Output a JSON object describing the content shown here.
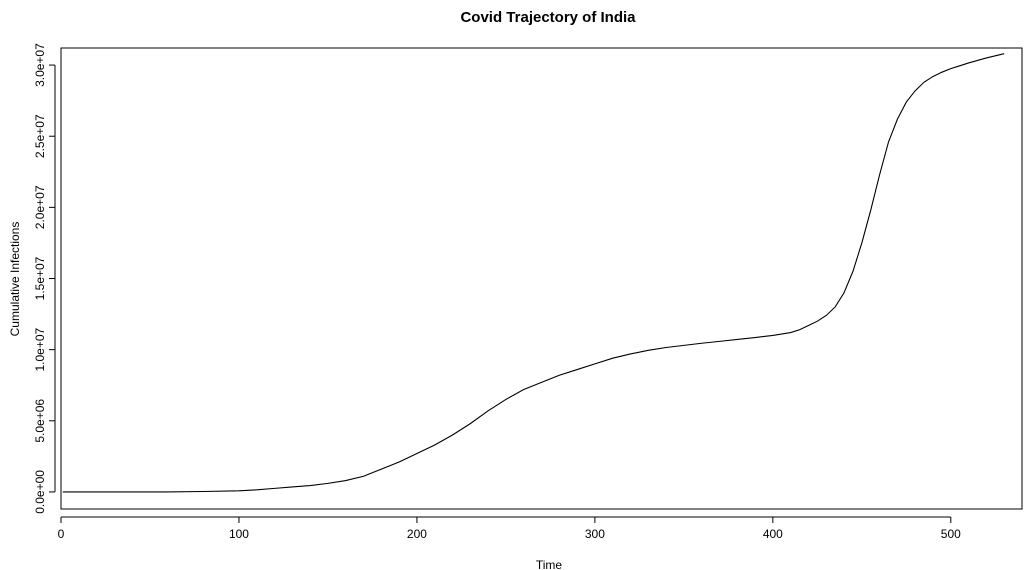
{
  "chart_data": {
    "type": "line",
    "title": "Covid Trajectory of India",
    "xlabel": "Time",
    "ylabel": "Cumulative Infections",
    "xlim": [
      0,
      540
    ],
    "ylim": [
      -1200000,
      31200000
    ],
    "x_ticks": [
      0,
      100,
      200,
      300,
      400,
      500
    ],
    "x_tick_labels": [
      "0",
      "100",
      "200",
      "300",
      "400",
      "500"
    ],
    "y_ticks": [
      0,
      5000000,
      10000000,
      15000000,
      20000000,
      25000000,
      30000000
    ],
    "y_tick_labels": [
      "0.0e+00",
      "5.0e+06",
      "1.0e+07",
      "1.5e+07",
      "2.0e+07",
      "2.5e+07",
      "3.0e+07"
    ],
    "grid": false,
    "box": true,
    "line_color": "#000000",
    "series": [
      {
        "x": [
          1,
          20,
          40,
          60,
          80,
          100,
          110,
          120,
          130,
          140,
          150,
          160,
          170,
          180,
          190,
          200,
          210,
          220,
          230,
          240,
          250,
          260,
          270,
          280,
          290,
          300,
          310,
          320,
          330,
          340,
          350,
          360,
          370,
          380,
          390,
          400,
          410,
          415,
          420,
          425,
          430,
          435,
          440,
          445,
          450,
          455,
          460,
          465,
          470,
          475,
          480,
          485,
          490,
          495,
          500,
          505,
          510,
          520,
          530
        ],
        "y": [
          0,
          0,
          0,
          0,
          30000,
          80000,
          150000,
          250000,
          350000,
          450000,
          600000,
          800000,
          1100000,
          1600000,
          2100000,
          2700000,
          3300000,
          4000000,
          4800000,
          5700000,
          6500000,
          7200000,
          7700000,
          8200000,
          8600000,
          9000000,
          9400000,
          9700000,
          9950000,
          10150000,
          10300000,
          10450000,
          10580000,
          10720000,
          10850000,
          11000000,
          11200000,
          11400000,
          11700000,
          12000000,
          12400000,
          13000000,
          14000000,
          15500000,
          17500000,
          19800000,
          22300000,
          24600000,
          26200000,
          27400000,
          28200000,
          28800000,
          29200000,
          29500000,
          29750000,
          29950000,
          30150000,
          30500000,
          30800000
        ]
      }
    ]
  }
}
